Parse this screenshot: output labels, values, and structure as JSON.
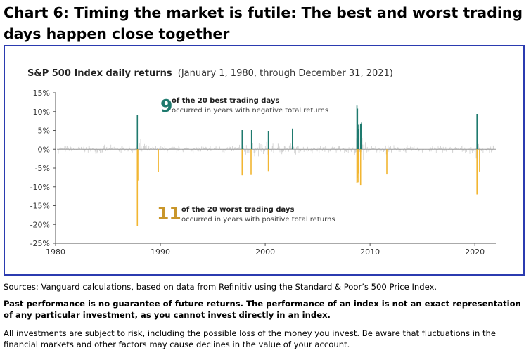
{
  "heading": "Chart 6: Timing the market is futile: The best and worst trading days happen close together",
  "chart_data": {
    "type": "bar",
    "title": "S&P 500 Index daily returns",
    "subtitle": "(January 1, 1980, through December 31, 2021)",
    "xlim": [
      1980,
      2022
    ],
    "ylim": [
      -25,
      15
    ],
    "x_ticks": [
      "1980",
      "1990",
      "2000",
      "2010",
      "2020"
    ],
    "y_ticks": [
      "15%",
      "10%",
      "5%",
      "0%",
      "-5%",
      "-10%",
      "-15%",
      "-20%",
      "-25%"
    ],
    "series": [
      {
        "name": "of the 20 best trading days",
        "color": "#1f7a6e",
        "x": [
          1987.8,
          1997.8,
          1998.7,
          2000.3,
          2002.6,
          2008.75,
          2008.8,
          2008.85,
          2008.9,
          2009.1,
          2009.2,
          2020.2,
          2020.25
        ],
        "values": [
          9.1,
          5.1,
          5.1,
          4.8,
          5.5,
          11.6,
          10.8,
          6.5,
          5.4,
          6.8,
          7.1,
          9.4,
          9.0
        ]
      },
      {
        "name": "of the 20 worst trading days",
        "color": "#f2b632",
        "x": [
          1987.8,
          1987.85,
          1989.8,
          1997.8,
          1998.65,
          2000.3,
          2008.75,
          2008.8,
          2008.85,
          2008.9,
          2009.1,
          2011.6,
          2020.2,
          2020.25,
          2020.45
        ],
        "values": [
          -20.5,
          -8.3,
          -6.1,
          -6.9,
          -6.8,
          -5.8,
          -9.0,
          -7.6,
          -8.8,
          -6.4,
          -9.5,
          -6.7,
          -12.0,
          -9.5,
          -5.9
        ]
      }
    ],
    "annotations": [
      {
        "number": "9",
        "line1": "of the 20 best trading days",
        "line2": "occurred in years with negative total returns",
        "color": "#1f7a6e"
      },
      {
        "number": "11",
        "line1": "of the 20 worst trading days",
        "line2": "occurred in years with positive total returns",
        "color": "#c9962a"
      }
    ],
    "grid": false
  },
  "notes": {
    "sources": "Sources: Vanguard calculations, based on data from Refinitiv using the Standard & Poor’s 500 Price Index.",
    "disclaimer_bold": "Past performance is no guarantee of future returns. The performance of an index is not an exact representation of any particular investment, as you cannot invest directly in an index.",
    "risk": "All investments are subject to risk, including the possible loss of the money you invest. Be aware that fluctuations in the financial markets and other factors may cause declines in the value of your account."
  }
}
